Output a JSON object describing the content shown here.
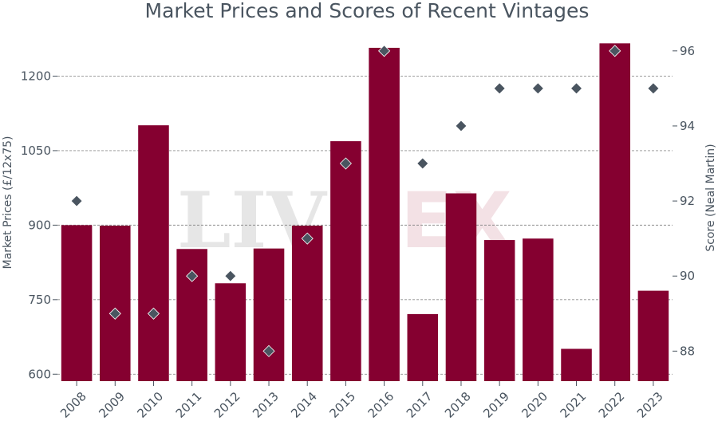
{
  "chart_data": {
    "type": "bar",
    "title": "Market Prices and Scores of Recent Vintages",
    "categories": [
      "2008",
      "2009",
      "2010",
      "2011",
      "2012",
      "2013",
      "2014",
      "2015",
      "2016",
      "2017",
      "2018",
      "2019",
      "2020",
      "2021",
      "2022",
      "2023"
    ],
    "series": [
      {
        "axis": "left",
        "kind": "bar",
        "values": [
          900,
          899,
          1101,
          852,
          783,
          853,
          899,
          1069,
          1257,
          721,
          964,
          870,
          873,
          651,
          1266,
          768
        ]
      },
      {
        "axis": "right",
        "kind": "scatter",
        "values": [
          92,
          89,
          89,
          90,
          90,
          88,
          91,
          93,
          96,
          93,
          94,
          95,
          95,
          95,
          96,
          95
        ]
      }
    ],
    "ylabel_left": "Market Prices (£/12x75)",
    "ylabel_right": "Score (Neal Martin)",
    "yticks_left": [
      "600",
      "750",
      "900",
      "1050",
      "1200"
    ],
    "yticks_right": [
      "88",
      "90",
      "92",
      "94",
      "96"
    ],
    "ylim_left": [
      586,
      1281
    ],
    "ylim_right": [
      87.2,
      96.4
    ],
    "grid": "horizontal dashed",
    "colors": {
      "bar": "#850030",
      "marker": "#4a5560",
      "text": "#4a5560"
    },
    "watermark": {
      "part1": "LIV",
      "part2": "EX"
    }
  }
}
